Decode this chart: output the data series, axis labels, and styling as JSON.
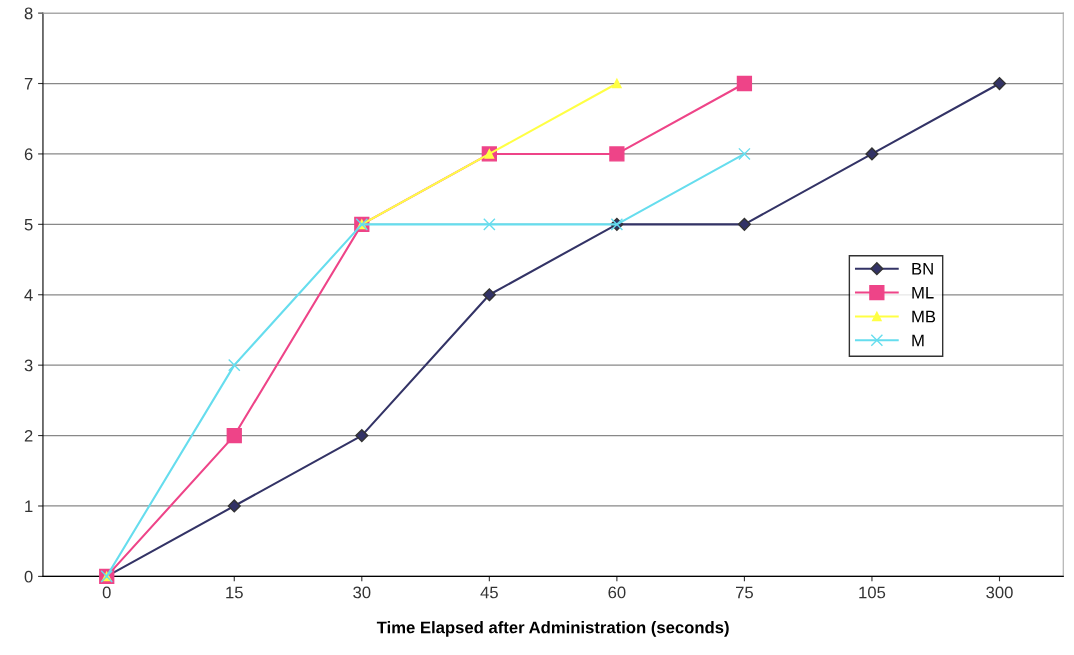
{
  "chart_data": {
    "type": "line",
    "xlabel": "Time Elapsed after Administration (seconds)",
    "categories": [
      "0",
      "15",
      "30",
      "45",
      "60",
      "75",
      "105",
      "300"
    ],
    "series": [
      {
        "name": "BN",
        "color": "#333366",
        "marker": "diamond",
        "values": [
          0,
          1,
          2,
          4,
          5,
          5,
          6,
          7
        ]
      },
      {
        "name": "ML",
        "color": "#ee4488",
        "marker": "square",
        "values": [
          0,
          2,
          5,
          6,
          6,
          7,
          null,
          null
        ]
      },
      {
        "name": "MB",
        "color": "#ffff44",
        "marker": "triangle",
        "values": [
          0,
          null,
          5,
          6,
          7,
          null,
          null,
          null
        ]
      },
      {
        "name": "M",
        "color": "#66ddee",
        "marker": "cross",
        "values": [
          0,
          3,
          5,
          5,
          5,
          6,
          null,
          null
        ]
      }
    ],
    "ylim": [
      0,
      8
    ],
    "yticks": [
      0,
      1,
      2,
      3,
      4,
      5,
      6,
      7,
      8
    ],
    "grid": "y",
    "legend": "right",
    "line_style": "solid"
  }
}
